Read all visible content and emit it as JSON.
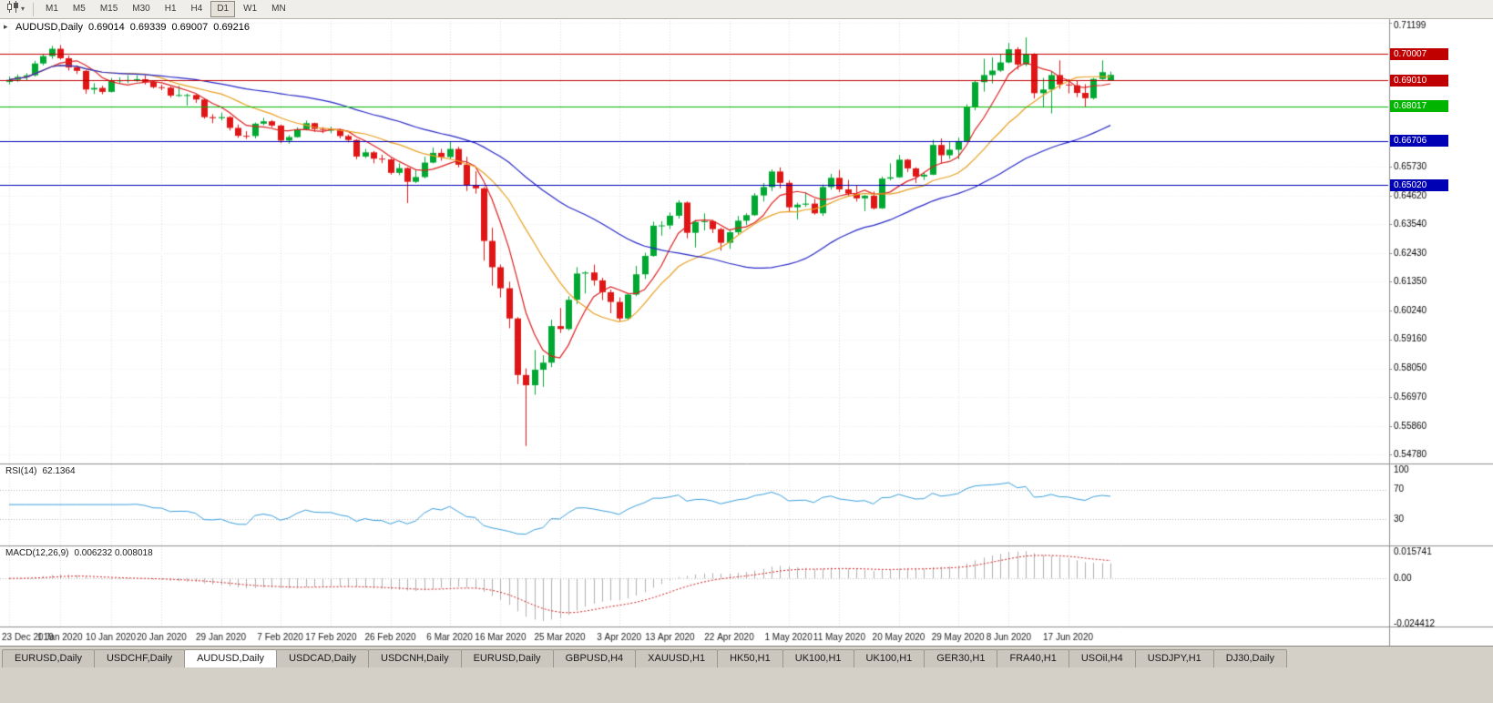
{
  "toolbar": {
    "chart_style_icon": "candlestick-chart-icon",
    "timeframes": [
      "M1",
      "M5",
      "M15",
      "M30",
      "H1",
      "H4",
      "D1",
      "W1",
      "MN"
    ],
    "active_timeframe": "D1"
  },
  "chart": {
    "title": {
      "symbol": "AUDUSD,Daily",
      "open": "0.69014",
      "high": "0.69339",
      "low": "0.69007",
      "close": "0.69216"
    }
  },
  "chart_data": {
    "type": "candlestick",
    "symbol": "AUDUSD",
    "timeframe": "Daily",
    "bull_color": "#00a832",
    "bear_color": "#e01515",
    "background": "#ffffff",
    "y_axis": {
      "min": 0.5478,
      "max": 0.71199,
      "ticks": [
        "0.71199",
        "0.65730",
        "0.64620",
        "0.63540",
        "0.62430",
        "0.61350",
        "0.60240",
        "0.59160",
        "0.58050",
        "0.56970",
        "0.55860",
        "0.54780"
      ]
    },
    "x_axis": {
      "ticks": [
        {
          "label": "23 Dec 2019",
          "i": 0
        },
        {
          "label": "1 Jan 2020",
          "i": 6
        },
        {
          "label": "10 Jan 2020",
          "i": 12
        },
        {
          "label": "20 Jan 2020",
          "i": 18
        },
        {
          "label": "29 Jan 2020",
          "i": 25
        },
        {
          "label": "7 Feb 2020",
          "i": 32
        },
        {
          "label": "17 Feb 2020",
          "i": 38
        },
        {
          "label": "26 Feb 2020",
          "i": 45
        },
        {
          "label": "6 Mar 2020",
          "i": 52
        },
        {
          "label": "16 Mar 2020",
          "i": 58
        },
        {
          "label": "25 Mar 2020",
          "i": 65
        },
        {
          "label": "3 Apr 2020",
          "i": 72
        },
        {
          "label": "13 Apr 2020",
          "i": 78
        },
        {
          "label": "22 Apr 2020",
          "i": 85
        },
        {
          "label": "1 May 2020",
          "i": 92
        },
        {
          "label": "11 May 2020",
          "i": 98
        },
        {
          "label": "20 May 2020",
          "i": 105
        },
        {
          "label": "29 May 2020",
          "i": 112
        },
        {
          "label": "8 Jun 2020",
          "i": 118
        },
        {
          "label": "17 Jun 2020",
          "i": 125
        }
      ]
    },
    "price_lines": [
      {
        "price": 0.70007,
        "label": "0.70007",
        "color": "#c00000"
      },
      {
        "price": 0.6901,
        "label": "0.69010",
        "color": "#c00000"
      },
      {
        "price": 0.68017,
        "label": "0.68017",
        "color": "#00b400"
      },
      {
        "price": 0.66706,
        "label": "0.66706",
        "color": "#0000b4"
      },
      {
        "price": 0.6502,
        "label": "0.65020",
        "color": "#0000b4"
      }
    ],
    "moving_averages": [
      {
        "period": 6,
        "color": "#dd2020"
      },
      {
        "period": 14,
        "color": "#e8a020"
      },
      {
        "period": 35,
        "color": "#2828c8"
      }
    ],
    "indicators": {
      "rsi": {
        "label": "RSI(14)",
        "value": "62.1364",
        "period": 14,
        "range": [
          0,
          100
        ],
        "levels": [
          70,
          30
        ],
        "axis_labels": [
          "100",
          "70",
          "30"
        ],
        "color": "#3aa0dc"
      },
      "macd": {
        "label": "MACD(12,26,9)",
        "value": "0.006232 0.008018",
        "fast": 12,
        "slow": 26,
        "signal": 9,
        "max": 0.015741,
        "min": -0.024412,
        "axis_labels": [
          "0.015741",
          "0.00",
          "-0.024412"
        ],
        "histogram_color": "#b0b0b0",
        "signal_color": "#d02020"
      }
    },
    "candles": [
      [
        0.6895,
        0.6915,
        0.6885,
        0.6903
      ],
      [
        0.6903,
        0.6923,
        0.6895,
        0.6914
      ],
      [
        0.6914,
        0.6928,
        0.69,
        0.692
      ],
      [
        0.692,
        0.6975,
        0.6915,
        0.6965
      ],
      [
        0.6965,
        0.7,
        0.6958,
        0.6993
      ],
      [
        0.6993,
        0.7032,
        0.6983,
        0.7021
      ],
      [
        0.7021,
        0.7035,
        0.698,
        0.6985
      ],
      [
        0.6985,
        0.6995,
        0.6938,
        0.695
      ],
      [
        0.695,
        0.6958,
        0.6925,
        0.6937
      ],
      [
        0.6937,
        0.694,
        0.685,
        0.6866
      ],
      [
        0.6866,
        0.689,
        0.6849,
        0.6872
      ],
      [
        0.6872,
        0.688,
        0.6848,
        0.6857
      ],
      [
        0.6857,
        0.691,
        0.6855,
        0.69
      ],
      [
        0.69,
        0.6912,
        0.689,
        0.6901
      ],
      [
        0.6901,
        0.692,
        0.689,
        0.6902
      ],
      [
        0.6902,
        0.692,
        0.6895,
        0.6905
      ],
      [
        0.6905,
        0.692,
        0.6885,
        0.6895
      ],
      [
        0.6895,
        0.69,
        0.687,
        0.6875
      ],
      [
        0.6875,
        0.6884,
        0.6863,
        0.6873
      ],
      [
        0.6873,
        0.6878,
        0.6835,
        0.6843
      ],
      [
        0.6843,
        0.688,
        0.6838,
        0.6845
      ],
      [
        0.6845,
        0.685,
        0.6805,
        0.6845
      ],
      [
        0.6845,
        0.6848,
        0.6815,
        0.6828
      ],
      [
        0.6828,
        0.683,
        0.6755,
        0.6761
      ],
      [
        0.6761,
        0.6772,
        0.6738,
        0.6757
      ],
      [
        0.6757,
        0.6778,
        0.6748,
        0.6761
      ],
      [
        0.6761,
        0.6765,
        0.671,
        0.672
      ],
      [
        0.672,
        0.6733,
        0.6682,
        0.669
      ],
      [
        0.669,
        0.6708,
        0.6678,
        0.6689
      ],
      [
        0.6689,
        0.674,
        0.668,
        0.6736
      ],
      [
        0.6736,
        0.6758,
        0.673,
        0.6745
      ],
      [
        0.6745,
        0.675,
        0.6722,
        0.6729
      ],
      [
        0.6729,
        0.6733,
        0.6662,
        0.6672
      ],
      [
        0.6672,
        0.6692,
        0.666,
        0.6685
      ],
      [
        0.6685,
        0.6722,
        0.6683,
        0.6715
      ],
      [
        0.6715,
        0.6748,
        0.671,
        0.6738
      ],
      [
        0.6738,
        0.674,
        0.6705,
        0.6716
      ],
      [
        0.6716,
        0.6723,
        0.67,
        0.6713
      ],
      [
        0.6713,
        0.6725,
        0.67,
        0.6713
      ],
      [
        0.6713,
        0.6717,
        0.668,
        0.6689
      ],
      [
        0.6689,
        0.6695,
        0.6665,
        0.6674
      ],
      [
        0.6674,
        0.6677,
        0.6601,
        0.6611
      ],
      [
        0.6611,
        0.664,
        0.6605,
        0.6627
      ],
      [
        0.6627,
        0.6632,
        0.6585,
        0.6603
      ],
      [
        0.6603,
        0.6618,
        0.6586,
        0.66
      ],
      [
        0.66,
        0.6605,
        0.6542,
        0.6549
      ],
      [
        0.6549,
        0.6585,
        0.654,
        0.6567
      ],
      [
        0.6567,
        0.657,
        0.6434,
        0.6515
      ],
      [
        0.6515,
        0.656,
        0.651,
        0.6533
      ],
      [
        0.6533,
        0.661,
        0.6528,
        0.6588
      ],
      [
        0.6588,
        0.6645,
        0.6585,
        0.6625
      ],
      [
        0.6625,
        0.664,
        0.6595,
        0.6609
      ],
      [
        0.6609,
        0.667,
        0.66,
        0.664
      ],
      [
        0.664,
        0.6648,
        0.657,
        0.658
      ],
      [
        0.658,
        0.661,
        0.648,
        0.6503
      ],
      [
        0.6503,
        0.6555,
        0.647,
        0.649
      ],
      [
        0.649,
        0.6495,
        0.6215,
        0.629
      ],
      [
        0.629,
        0.634,
        0.612,
        0.619
      ],
      [
        0.619,
        0.62,
        0.6075,
        0.611
      ],
      [
        0.611,
        0.6135,
        0.5958,
        0.5995
      ],
      [
        0.5995,
        0.6,
        0.5745,
        0.578
      ],
      [
        0.578,
        0.5805,
        0.551,
        0.5741
      ],
      [
        0.5741,
        0.5875,
        0.5705,
        0.58
      ],
      [
        0.58,
        0.5855,
        0.5735,
        0.5827
      ],
      [
        0.5827,
        0.599,
        0.581,
        0.5966
      ],
      [
        0.5966,
        0.6035,
        0.594,
        0.5955
      ],
      [
        0.5955,
        0.608,
        0.595,
        0.6066
      ],
      [
        0.6066,
        0.619,
        0.605,
        0.6166
      ],
      [
        0.6166,
        0.6175,
        0.609,
        0.617
      ],
      [
        0.617,
        0.62,
        0.612,
        0.614
      ],
      [
        0.614,
        0.615,
        0.6065,
        0.6095
      ],
      [
        0.6095,
        0.6105,
        0.6015,
        0.6058
      ],
      [
        0.6058,
        0.6075,
        0.5985,
        0.5995
      ],
      [
        0.5995,
        0.609,
        0.599,
        0.6086
      ],
      [
        0.6086,
        0.6195,
        0.608,
        0.6163
      ],
      [
        0.6163,
        0.6245,
        0.6145,
        0.6233
      ],
      [
        0.6233,
        0.6363,
        0.623,
        0.6348
      ],
      [
        0.6348,
        0.6365,
        0.631,
        0.6349
      ],
      [
        0.6349,
        0.6398,
        0.6335,
        0.6386
      ],
      [
        0.6386,
        0.6445,
        0.6375,
        0.6436
      ],
      [
        0.6436,
        0.644,
        0.63,
        0.6321
      ],
      [
        0.6321,
        0.637,
        0.6265,
        0.6362
      ],
      [
        0.6362,
        0.6395,
        0.633,
        0.6365
      ],
      [
        0.6365,
        0.637,
        0.632,
        0.6335
      ],
      [
        0.6335,
        0.634,
        0.6253,
        0.6283
      ],
      [
        0.6283,
        0.633,
        0.626,
        0.6323
      ],
      [
        0.6323,
        0.6385,
        0.6315,
        0.6367
      ],
      [
        0.6367,
        0.6395,
        0.635,
        0.6388
      ],
      [
        0.6388,
        0.6472,
        0.6385,
        0.6463
      ],
      [
        0.6463,
        0.651,
        0.644,
        0.6495
      ],
      [
        0.6495,
        0.6562,
        0.648,
        0.6554
      ],
      [
        0.6554,
        0.657,
        0.649,
        0.6511
      ],
      [
        0.6511,
        0.652,
        0.64,
        0.6418
      ],
      [
        0.6418,
        0.6435,
        0.6372,
        0.6428
      ],
      [
        0.6428,
        0.6475,
        0.642,
        0.6432
      ],
      [
        0.6432,
        0.645,
        0.639,
        0.6395
      ],
      [
        0.6395,
        0.6505,
        0.6385,
        0.6495
      ],
      [
        0.6495,
        0.6545,
        0.6485,
        0.653
      ],
      [
        0.653,
        0.656,
        0.6475,
        0.6486
      ],
      [
        0.6486,
        0.6522,
        0.6462,
        0.647
      ],
      [
        0.647,
        0.6503,
        0.644,
        0.6452
      ],
      [
        0.6452,
        0.6465,
        0.6403,
        0.6462
      ],
      [
        0.6462,
        0.6478,
        0.641,
        0.6414
      ],
      [
        0.6414,
        0.6535,
        0.6412,
        0.6527
      ],
      [
        0.6527,
        0.6585,
        0.652,
        0.6532
      ],
      [
        0.6532,
        0.6617,
        0.653,
        0.6599
      ],
      [
        0.6599,
        0.6602,
        0.6552,
        0.6566
      ],
      [
        0.6566,
        0.657,
        0.651,
        0.6535
      ],
      [
        0.6535,
        0.6552,
        0.6522,
        0.6542
      ],
      [
        0.6542,
        0.6675,
        0.654,
        0.6655
      ],
      [
        0.6655,
        0.668,
        0.6583,
        0.6616
      ],
      [
        0.6616,
        0.6666,
        0.6602,
        0.6637
      ],
      [
        0.6637,
        0.6683,
        0.6601,
        0.667
      ],
      [
        0.667,
        0.681,
        0.6668,
        0.6799
      ],
      [
        0.6799,
        0.6899,
        0.6787,
        0.6894
      ],
      [
        0.6894,
        0.6983,
        0.6858,
        0.6921
      ],
      [
        0.6921,
        0.6988,
        0.6889,
        0.6938
      ],
      [
        0.6938,
        0.7,
        0.6933,
        0.6969
      ],
      [
        0.6969,
        0.7043,
        0.6965,
        0.7019
      ],
      [
        0.7019,
        0.7027,
        0.6942,
        0.6961
      ],
      [
        0.6961,
        0.7064,
        0.6955,
        0.6999
      ],
      [
        0.6999,
        0.7004,
        0.6832,
        0.6852
      ],
      [
        0.6852,
        0.691,
        0.68,
        0.6866
      ],
      [
        0.6866,
        0.6935,
        0.6775,
        0.6921
      ],
      [
        0.6921,
        0.6977,
        0.6869,
        0.6885
      ],
      [
        0.6885,
        0.6905,
        0.6851,
        0.6882
      ],
      [
        0.6882,
        0.6898,
        0.6837,
        0.6853
      ],
      [
        0.6853,
        0.6886,
        0.68,
        0.6833
      ],
      [
        0.6833,
        0.691,
        0.6828,
        0.6906
      ],
      [
        0.6906,
        0.6977,
        0.6903,
        0.6932
      ],
      [
        0.69014,
        0.69339,
        0.69007,
        0.69216
      ]
    ]
  },
  "tabs": {
    "active_index": 2,
    "items": [
      "EURUSD,Daily",
      "USDCHF,Daily",
      "AUDUSD,Daily",
      "USDCAD,Daily",
      "USDCNH,Daily",
      "EURUSD,Daily",
      "GBPUSD,H4",
      "XAUUSD,H1",
      "HK50,H1",
      "UK100,H1",
      "UK100,H1",
      "GER30,H1",
      "FRA40,H1",
      "USOil,H4",
      "USDJPY,H1",
      "DJ30,Daily"
    ]
  }
}
